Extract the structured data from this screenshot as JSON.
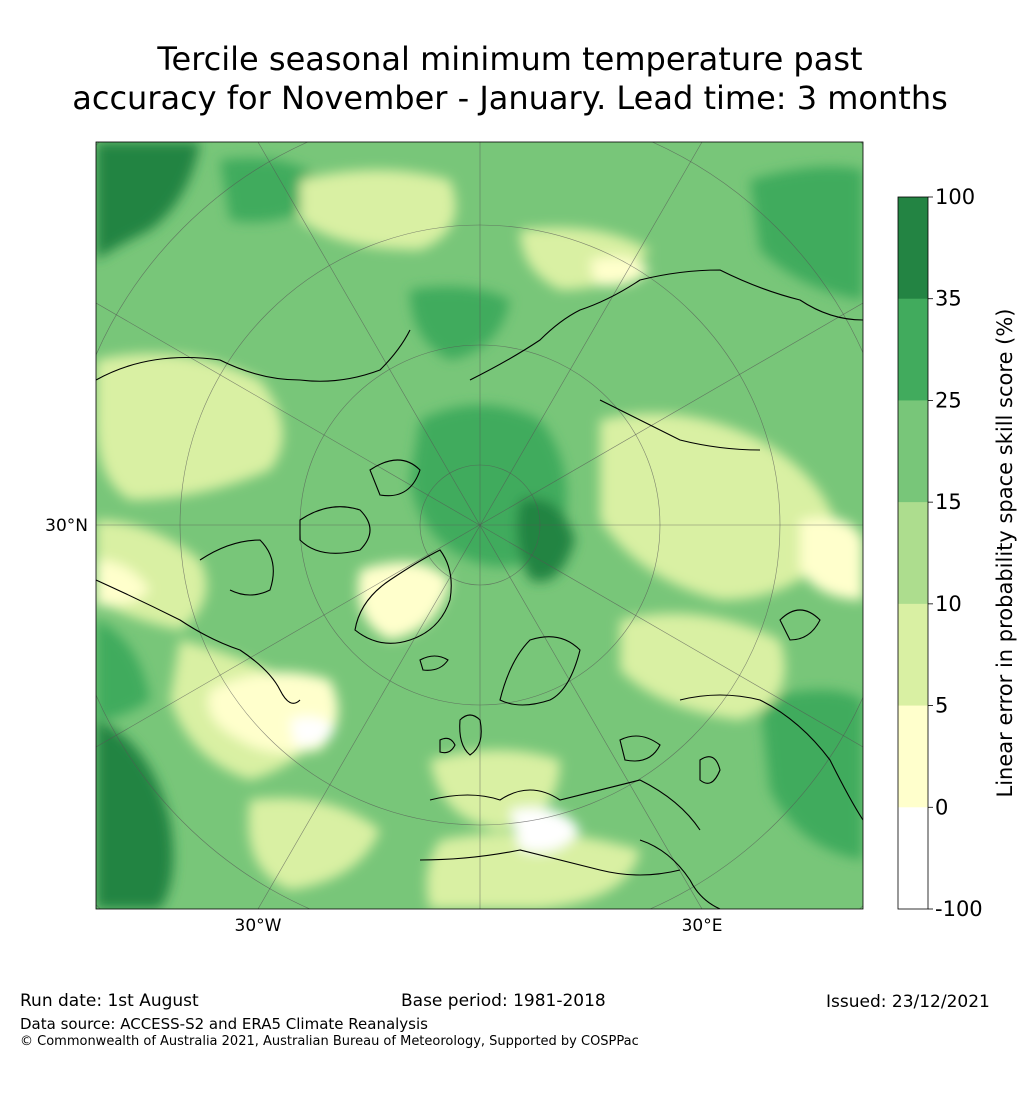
{
  "title_line1": "Tercile seasonal minimum temperature past",
  "title_line2": "accuracy for November - January. Lead time: 3 months",
  "map": {
    "lat_label": "30°N",
    "lon_labels": [
      "30°W",
      "30°E"
    ]
  },
  "colorbar": {
    "label": "Linear error in probability space skill score (%)",
    "ticks": [
      "100",
      "35",
      "25",
      "15",
      "10",
      "5",
      "0",
      "-100"
    ],
    "colors": [
      "#238443",
      "#41ab5d",
      "#78c679",
      "#addd8e",
      "#d9f0a3",
      "#ffffcc",
      "#ffffff"
    ]
  },
  "footer": {
    "run_date": "Run date: 1st August",
    "base_period": "Base period: 1981-2018",
    "issued": "Issued: 23/12/2021",
    "data_source": "Data source: ACCESS-S2 and ERA5 Climate Reanalysis",
    "copyright": "© Commonwealth of Australia 2021, Australian Bureau of Meteorology, Supported by COSPPac"
  }
}
